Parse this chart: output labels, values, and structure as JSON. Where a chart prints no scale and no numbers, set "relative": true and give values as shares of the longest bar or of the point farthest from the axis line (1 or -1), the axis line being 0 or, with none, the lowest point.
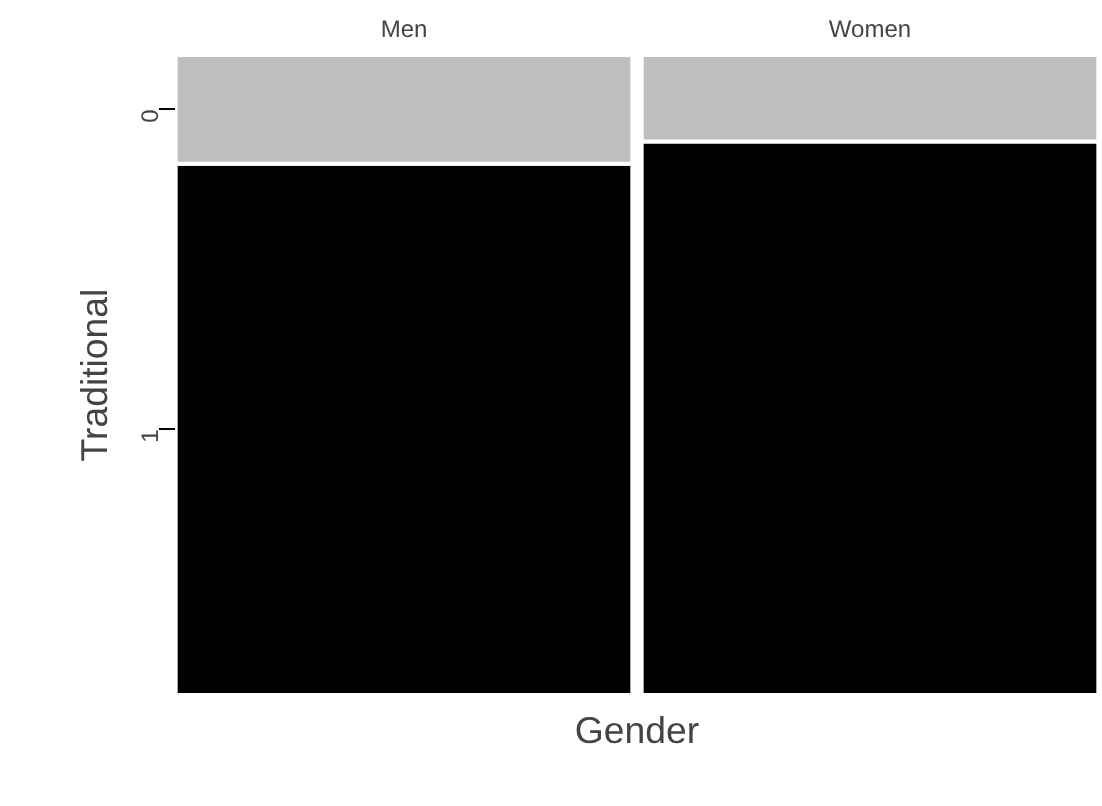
{
  "chart_data": {
    "type": "bar",
    "stacked": true,
    "relative": true,
    "categories": [
      "Men",
      "Women"
    ],
    "xlabel": "Gender",
    "ylabel": "Traditional",
    "series": [
      {
        "name": "1",
        "color": "#000000",
        "values": [
          0.83,
          0.865
        ]
      },
      {
        "name": "0",
        "color": "#bebebe",
        "values": [
          0.17,
          0.135
        ]
      }
    ]
  }
}
